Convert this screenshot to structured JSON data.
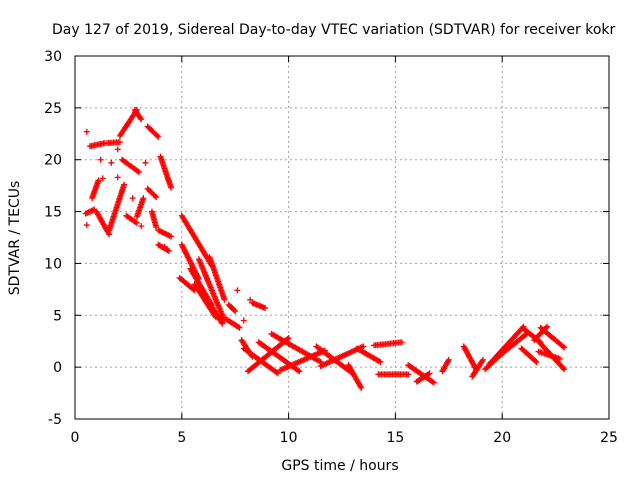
{
  "chart_data": {
    "type": "scatter",
    "title": "Day 127 of 2019, Sidereal Day-to-day VTEC variation (SDTVAR) for receiver kokr",
    "xlabel": "GPS time / hours",
    "ylabel": "SDTVAR / TECUs",
    "xlim": [
      0,
      25
    ],
    "ylim": [
      -5,
      30
    ],
    "xticks": [
      0,
      5,
      10,
      15,
      20,
      25
    ],
    "yticks": [
      -5,
      0,
      5,
      10,
      15,
      20,
      25,
      30
    ],
    "grid": true,
    "marker": "+",
    "color": "#ff0000",
    "segments": [
      {
        "x": [
          0.5,
          0.9
        ],
        "y": [
          14.8,
          15.2
        ]
      },
      {
        "x": [
          0.7,
          1.4
        ],
        "y": [
          21.3,
          21.6
        ]
      },
      {
        "x": [
          0.8,
          1.1
        ],
        "y": [
          16.3,
          18.0
        ]
      },
      {
        "x": [
          1.0,
          1.6
        ],
        "y": [
          15.0,
          12.8
        ]
      },
      {
        "x": [
          1.5,
          2.1
        ],
        "y": [
          21.6,
          21.7
        ]
      },
      {
        "x": [
          1.6,
          2.3
        ],
        "y": [
          13.2,
          17.6
        ]
      },
      {
        "x": [
          2.1,
          2.9
        ],
        "y": [
          22.3,
          24.8
        ]
      },
      {
        "x": [
          2.2,
          3.0
        ],
        "y": [
          20.0,
          18.8
        ]
      },
      {
        "x": [
          2.4,
          2.9
        ],
        "y": [
          14.6,
          13.9
        ]
      },
      {
        "x": [
          2.8,
          3.1
        ],
        "y": [
          24.8,
          23.9
        ]
      },
      {
        "x": [
          2.9,
          3.2
        ],
        "y": [
          14.5,
          16.3
        ]
      },
      {
        "x": [
          3.4,
          3.9
        ],
        "y": [
          23.2,
          22.2
        ]
      },
      {
        "x": [
          3.4,
          3.8
        ],
        "y": [
          17.2,
          16.4
        ]
      },
      {
        "x": [
          3.6,
          3.8
        ],
        "y": [
          15.0,
          13.5
        ]
      },
      {
        "x": [
          4.0,
          4.5
        ],
        "y": [
          20.3,
          17.3
        ]
      },
      {
        "x": [
          3.9,
          4.5
        ],
        "y": [
          13.2,
          12.6
        ]
      },
      {
        "x": [
          3.9,
          4.4
        ],
        "y": [
          11.8,
          11.2
        ]
      },
      {
        "x": [
          5.0,
          6.4
        ],
        "y": [
          14.6,
          9.8
        ]
      },
      {
        "x": [
          6.3,
          7.0
        ],
        "y": [
          10.6,
          6.5
        ]
      },
      {
        "x": [
          5.0,
          5.8
        ],
        "y": [
          11.8,
          8.5
        ]
      },
      {
        "x": [
          5.8,
          7.0
        ],
        "y": [
          10.4,
          4.5
        ]
      },
      {
        "x": [
          5.4,
          6.4
        ],
        "y": [
          9.5,
          6.0
        ]
      },
      {
        "x": [
          6.2,
          6.9
        ],
        "y": [
          6.5,
          4.2
        ]
      },
      {
        "x": [
          4.9,
          5.6
        ],
        "y": [
          8.6,
          7.4
        ]
      },
      {
        "x": [
          5.6,
          6.6
        ],
        "y": [
          8.0,
          4.8
        ]
      },
      {
        "x": [
          7.1,
          7.7
        ],
        "y": [
          4.6,
          3.8
        ]
      },
      {
        "x": [
          7.2,
          7.5
        ],
        "y": [
          6.0,
          5.4
        ]
      },
      {
        "x": [
          8.3,
          8.9
        ],
        "y": [
          6.2,
          5.7
        ]
      },
      {
        "x": [
          7.8,
          8.3
        ],
        "y": [
          2.6,
          1.0
        ]
      },
      {
        "x": [
          7.9,
          9.5
        ],
        "y": [
          1.8,
          -0.6
        ]
      },
      {
        "x": [
          8.1,
          10.0
        ],
        "y": [
          -0.4,
          2.8
        ]
      },
      {
        "x": [
          8.6,
          10.5
        ],
        "y": [
          2.4,
          -0.4
        ]
      },
      {
        "x": [
          9.2,
          11.5
        ],
        "y": [
          3.2,
          0.5
        ]
      },
      {
        "x": [
          9.6,
          11.7
        ],
        "y": [
          -0.3,
          1.6
        ]
      },
      {
        "x": [
          11.3,
          13.0
        ],
        "y": [
          2.0,
          -0.6
        ]
      },
      {
        "x": [
          11.5,
          13.5
        ],
        "y": [
          0.1,
          2.0
        ]
      },
      {
        "x": [
          12.8,
          13.4
        ],
        "y": [
          0.2,
          -2.0
        ]
      },
      {
        "x": [
          13.2,
          14.3
        ],
        "y": [
          1.8,
          0.5
        ]
      },
      {
        "x": [
          14.0,
          15.3
        ],
        "y": [
          2.1,
          2.4
        ]
      },
      {
        "x": [
          14.2,
          15.6
        ],
        "y": [
          -0.7,
          -0.7
        ]
      },
      {
        "x": [
          15.6,
          16.8
        ],
        "y": [
          0.2,
          -1.5
        ]
      },
      {
        "x": [
          16.0,
          16.6
        ],
        "y": [
          -1.4,
          -0.6
        ]
      },
      {
        "x": [
          17.2,
          17.5
        ],
        "y": [
          -0.4,
          0.7
        ]
      },
      {
        "x": [
          18.2,
          18.8
        ],
        "y": [
          2.0,
          -0.3
        ]
      },
      {
        "x": [
          18.6,
          19.1
        ],
        "y": [
          -0.9,
          0.7
        ]
      },
      {
        "x": [
          19.2,
          20.4
        ],
        "y": [
          -0.2,
          2.1
        ]
      },
      {
        "x": [
          19.4,
          21.0
        ],
        "y": [
          0.3,
          3.9
        ]
      },
      {
        "x": [
          19.8,
          21.2
        ],
        "y": [
          1.0,
          3.3
        ]
      },
      {
        "x": [
          21.0,
          21.8
        ],
        "y": [
          3.7,
          2.4
        ]
      },
      {
        "x": [
          20.9,
          21.6
        ],
        "y": [
          1.8,
          0.5
        ]
      },
      {
        "x": [
          21.5,
          22.1
        ],
        "y": [
          2.6,
          3.9
        ]
      },
      {
        "x": [
          21.8,
          22.9
        ],
        "y": [
          3.8,
          1.9
        ]
      },
      {
        "x": [
          21.6,
          22.9
        ],
        "y": [
          2.7,
          -0.2
        ]
      },
      {
        "x": [
          21.7,
          22.7
        ],
        "y": [
          1.5,
          0.8
        ]
      }
    ],
    "points": [
      {
        "x": 0.55,
        "y": 22.7
      },
      {
        "x": 0.55,
        "y": 13.7
      },
      {
        "x": 1.2,
        "y": 20.0
      },
      {
        "x": 1.3,
        "y": 18.2
      },
      {
        "x": 1.7,
        "y": 19.7
      },
      {
        "x": 2.0,
        "y": 18.3
      },
      {
        "x": 2.0,
        "y": 21.0
      },
      {
        "x": 2.7,
        "y": 16.3
      },
      {
        "x": 3.3,
        "y": 19.7
      },
      {
        "x": 3.1,
        "y": 13.6
      },
      {
        "x": 4.2,
        "y": 11.6
      },
      {
        "x": 7.6,
        "y": 7.4
      },
      {
        "x": 7.9,
        "y": 4.5
      },
      {
        "x": 8.2,
        "y": 6.5
      }
    ]
  }
}
